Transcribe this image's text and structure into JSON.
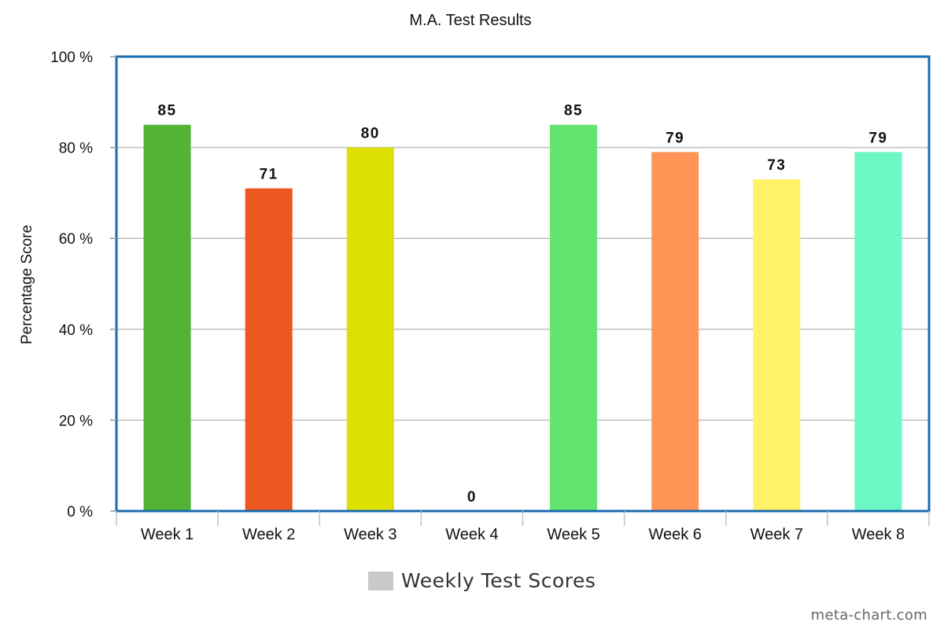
{
  "chart_data": {
    "type": "bar",
    "title": "M.A. Test Results",
    "xlabel": "",
    "ylabel": "Percentage Score",
    "ylim": [
      0,
      100
    ],
    "y_ticks": [
      "0 %",
      "20 %",
      "40 %",
      "60 %",
      "80 %",
      "100 %"
    ],
    "y_tick_values": [
      0,
      20,
      40,
      60,
      80,
      100
    ],
    "categories": [
      "Week 1",
      "Week 2",
      "Week 3",
      "Week 4",
      "Week 5",
      "Week 6",
      "Week 7",
      "Week 8"
    ],
    "values": [
      85,
      71,
      80,
      0,
      85,
      79,
      73,
      79
    ],
    "data_labels": [
      "85",
      "71",
      "80",
      "0",
      "85",
      "79",
      "73",
      "79"
    ],
    "bar_colors": [
      "#52b335",
      "#eb571e",
      "#dde000",
      "#ffffff",
      "#63e370",
      "#ff9657",
      "#fff266",
      "#6cf7c3"
    ],
    "grid": true,
    "legend": {
      "position": "bottom",
      "label": "Weekly Test Scores",
      "color": "#c9c9c9"
    },
    "frame_color": "#1a6bb0"
  },
  "watermark": "meta-chart.com"
}
